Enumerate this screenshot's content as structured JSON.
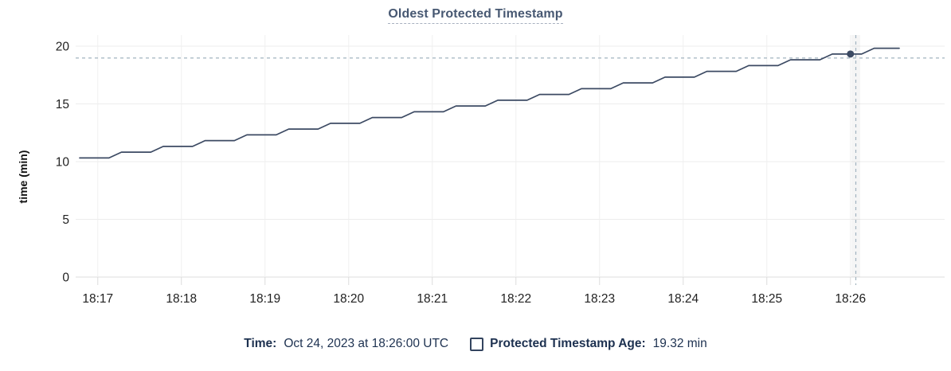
{
  "chart_data": {
    "type": "line",
    "title": "Oldest Protected Timestamp",
    "xlabel": "",
    "ylabel": "time (min)",
    "ylim": [
      0,
      20
    ],
    "y_ticks": [
      0,
      5,
      10,
      15,
      20
    ],
    "x_ticks": [
      "18:17",
      "18:18",
      "18:19",
      "18:20",
      "18:21",
      "18:22",
      "18:23",
      "18:24",
      "18:25",
      "18:26"
    ],
    "grid": true,
    "legend_position": "bottom",
    "series": [
      {
        "name": "Protected Timestamp Age",
        "unit": "min",
        "color": "#3c4a63",
        "points_format": "[seconds relative to 18:17:00, minutes]",
        "points": [
          [
            -13,
            10.32
          ],
          [
            8,
            10.32
          ],
          [
            17,
            10.82
          ],
          [
            38,
            10.82
          ],
          [
            47,
            11.32
          ],
          [
            68,
            11.32
          ],
          [
            77,
            11.82
          ],
          [
            98,
            11.82
          ],
          [
            107,
            12.32
          ],
          [
            128,
            12.32
          ],
          [
            137,
            12.82
          ],
          [
            158,
            12.82
          ],
          [
            167,
            13.32
          ],
          [
            188,
            13.32
          ],
          [
            197,
            13.82
          ],
          [
            218,
            13.82
          ],
          [
            227,
            14.32
          ],
          [
            248,
            14.32
          ],
          [
            257,
            14.82
          ],
          [
            278,
            14.82
          ],
          [
            287,
            15.32
          ],
          [
            308,
            15.32
          ],
          [
            317,
            15.82
          ],
          [
            338,
            15.82
          ],
          [
            347,
            16.32
          ],
          [
            368,
            16.32
          ],
          [
            377,
            16.82
          ],
          [
            398,
            16.82
          ],
          [
            407,
            17.32
          ],
          [
            428,
            17.32
          ],
          [
            437,
            17.82
          ],
          [
            458,
            17.82
          ],
          [
            467,
            18.32
          ],
          [
            488,
            18.32
          ],
          [
            497,
            18.82
          ],
          [
            518,
            18.82
          ],
          [
            527,
            19.32
          ],
          [
            548,
            19.32
          ],
          [
            557,
            19.82
          ],
          [
            575,
            19.82
          ]
        ]
      }
    ],
    "hover_point": {
      "time": "18:26:00",
      "seconds": 540,
      "value": 19.32
    }
  },
  "tooltip": {
    "time_label": "Time:",
    "time_value": "Oct 24, 2023 at 18:26:00 UTC",
    "series_label": "Protected Timestamp Age:",
    "series_value": "19.32 min"
  },
  "colors": {
    "line": "#3c4a63",
    "title": "#475872",
    "legend_text": "#1d3150",
    "crosshair": "#a2b3bf",
    "grid": "#ececec",
    "tick_text": "#222222"
  }
}
